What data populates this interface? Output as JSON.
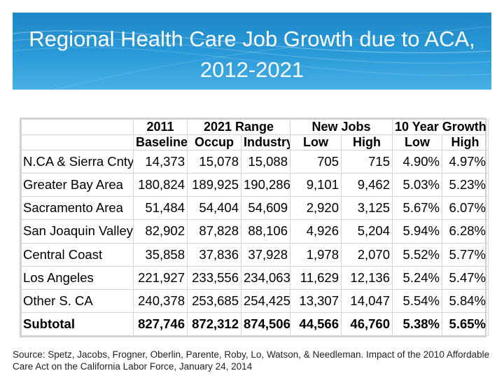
{
  "title": "Regional Health Care Job Growth due to ACA, 2012-2021",
  "table": {
    "group_headers": [
      "2011",
      "2021 Range",
      "New Jobs",
      "10 Year Growth"
    ],
    "sub_headers": [
      "Baseline",
      "Occup",
      "Industry",
      "Low",
      "High",
      "Low",
      "High"
    ],
    "rows": [
      [
        "N.CA & Sierra Cntys",
        "14,373",
        "15,078",
        "15,088",
        "705",
        "715",
        "4.90%",
        "4.97%"
      ],
      [
        "Greater Bay Area",
        "180,824",
        "189,925",
        "190,286",
        "9,101",
        "9,462",
        "5.03%",
        "5.23%"
      ],
      [
        "Sacramento Area",
        "51,484",
        "54,404",
        "54,609",
        "2,920",
        "3,125",
        "5.67%",
        "6.07%"
      ],
      [
        "San Joaquin Valley",
        "82,902",
        "87,828",
        "88,106",
        "4,926",
        "5,204",
        "5.94%",
        "6.28%"
      ],
      [
        "Central Coast",
        "35,858",
        "37,836",
        "37,928",
        "1,978",
        "2,070",
        "5.52%",
        "5.77%"
      ],
      [
        "Los Angeles",
        "221,927",
        "233,556",
        "234,063",
        "11,629",
        "12,136",
        "5.24%",
        "5.47%"
      ],
      [
        "Other S. CA",
        "240,378",
        "253,685",
        "254,425",
        "13,307",
        "14,047",
        "5.54%",
        "5.84%"
      ]
    ],
    "total": [
      "Subtotal",
      "827,746",
      "872,312",
      "874,506",
      "44,566",
      "46,760",
      "5.38%",
      "5.65%"
    ]
  },
  "source": "Source: Spetz, Jacobs, Frogner, Oberlin, Parente, Roby, Lo, Watson, & Needleman. Impact of the 2010 Affordable Care Act on the California Labor Force, January 24, 2014",
  "colors": {
    "header_band": "#2a9ad8",
    "grid": "#d4d4d4"
  }
}
